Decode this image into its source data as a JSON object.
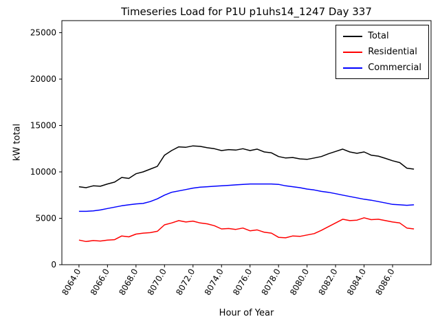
{
  "chart_data": {
    "type": "line",
    "title": "Timeseries Load for P1U p1uhs14_1247  Day 337",
    "xlabel": "Hour of Year",
    "ylabel": "kW total",
    "xlim": [
      8062.8,
      8088.7
    ],
    "ylim": [
      0,
      26300
    ],
    "grid": false,
    "legend_position": "upper right",
    "x_ticks": [
      8064,
      8066,
      8068,
      8070,
      8072,
      8074,
      8076,
      8078,
      8080,
      8082,
      8084,
      8086
    ],
    "x_tick_labels": [
      "8064.0",
      "8066.0",
      "8068.0",
      "8070.0",
      "8072.0",
      "8074.0",
      "8076.0",
      "8078.0",
      "8080.0",
      "8082.0",
      "8084.0",
      "8086.0"
    ],
    "y_ticks": [
      0,
      5000,
      10000,
      15000,
      20000,
      25000
    ],
    "x": [
      8064.0,
      8064.5,
      8065.0,
      8065.5,
      8066.0,
      8066.5,
      8067.0,
      8067.5,
      8068.0,
      8068.5,
      8069.0,
      8069.5,
      8070.0,
      8070.5,
      8071.0,
      8071.5,
      8072.0,
      8072.5,
      8073.0,
      8073.5,
      8074.0,
      8074.5,
      8075.0,
      8075.5,
      8076.0,
      8076.5,
      8077.0,
      8077.5,
      8078.0,
      8078.5,
      8079.0,
      8079.5,
      8080.0,
      8080.5,
      8081.0,
      8081.5,
      8082.0,
      8082.5,
      8083.0,
      8083.5,
      8084.0,
      8084.5,
      8085.0,
      8085.5,
      8086.0,
      8086.5,
      8087.0,
      8087.5
    ],
    "series": [
      {
        "name": "Total",
        "color": "#000000",
        "values": [
          8400,
          8300,
          8500,
          8450,
          8700,
          8900,
          9400,
          9300,
          9800,
          10000,
          10300,
          10600,
          11800,
          12300,
          12700,
          12650,
          12800,
          12750,
          12600,
          12500,
          12300,
          12400,
          12350,
          12500,
          12300,
          12450,
          12150,
          12050,
          11650,
          11500,
          11550,
          11400,
          11350,
          11500,
          11650,
          11950,
          12200,
          12450,
          12150,
          12000,
          12150,
          11800,
          11700,
          11450,
          11200,
          11000,
          10400,
          10300
        ]
      },
      {
        "name": "Residential",
        "color": "#ff0000",
        "values": [
          2650,
          2500,
          2600,
          2550,
          2650,
          2700,
          3100,
          3000,
          3300,
          3400,
          3450,
          3600,
          4300,
          4500,
          4750,
          4600,
          4700,
          4500,
          4400,
          4200,
          3850,
          3900,
          3800,
          3950,
          3650,
          3750,
          3500,
          3400,
          2950,
          2900,
          3100,
          3050,
          3200,
          3350,
          3700,
          4100,
          4500,
          4900,
          4750,
          4800,
          5050,
          4850,
          4900,
          4750,
          4600,
          4500,
          3950,
          3850
        ]
      },
      {
        "name": "Commercial",
        "color": "#0000ff",
        "values": [
          5750,
          5750,
          5800,
          5900,
          6050,
          6200,
          6350,
          6450,
          6550,
          6600,
          6800,
          7100,
          7500,
          7800,
          7950,
          8100,
          8250,
          8350,
          8400,
          8450,
          8500,
          8550,
          8600,
          8650,
          8700,
          8700,
          8700,
          8700,
          8650,
          8500,
          8400,
          8300,
          8150,
          8050,
          7900,
          7800,
          7650,
          7500,
          7350,
          7200,
          7050,
          6950,
          6800,
          6650,
          6500,
          6450,
          6400,
          6450
        ]
      }
    ]
  }
}
